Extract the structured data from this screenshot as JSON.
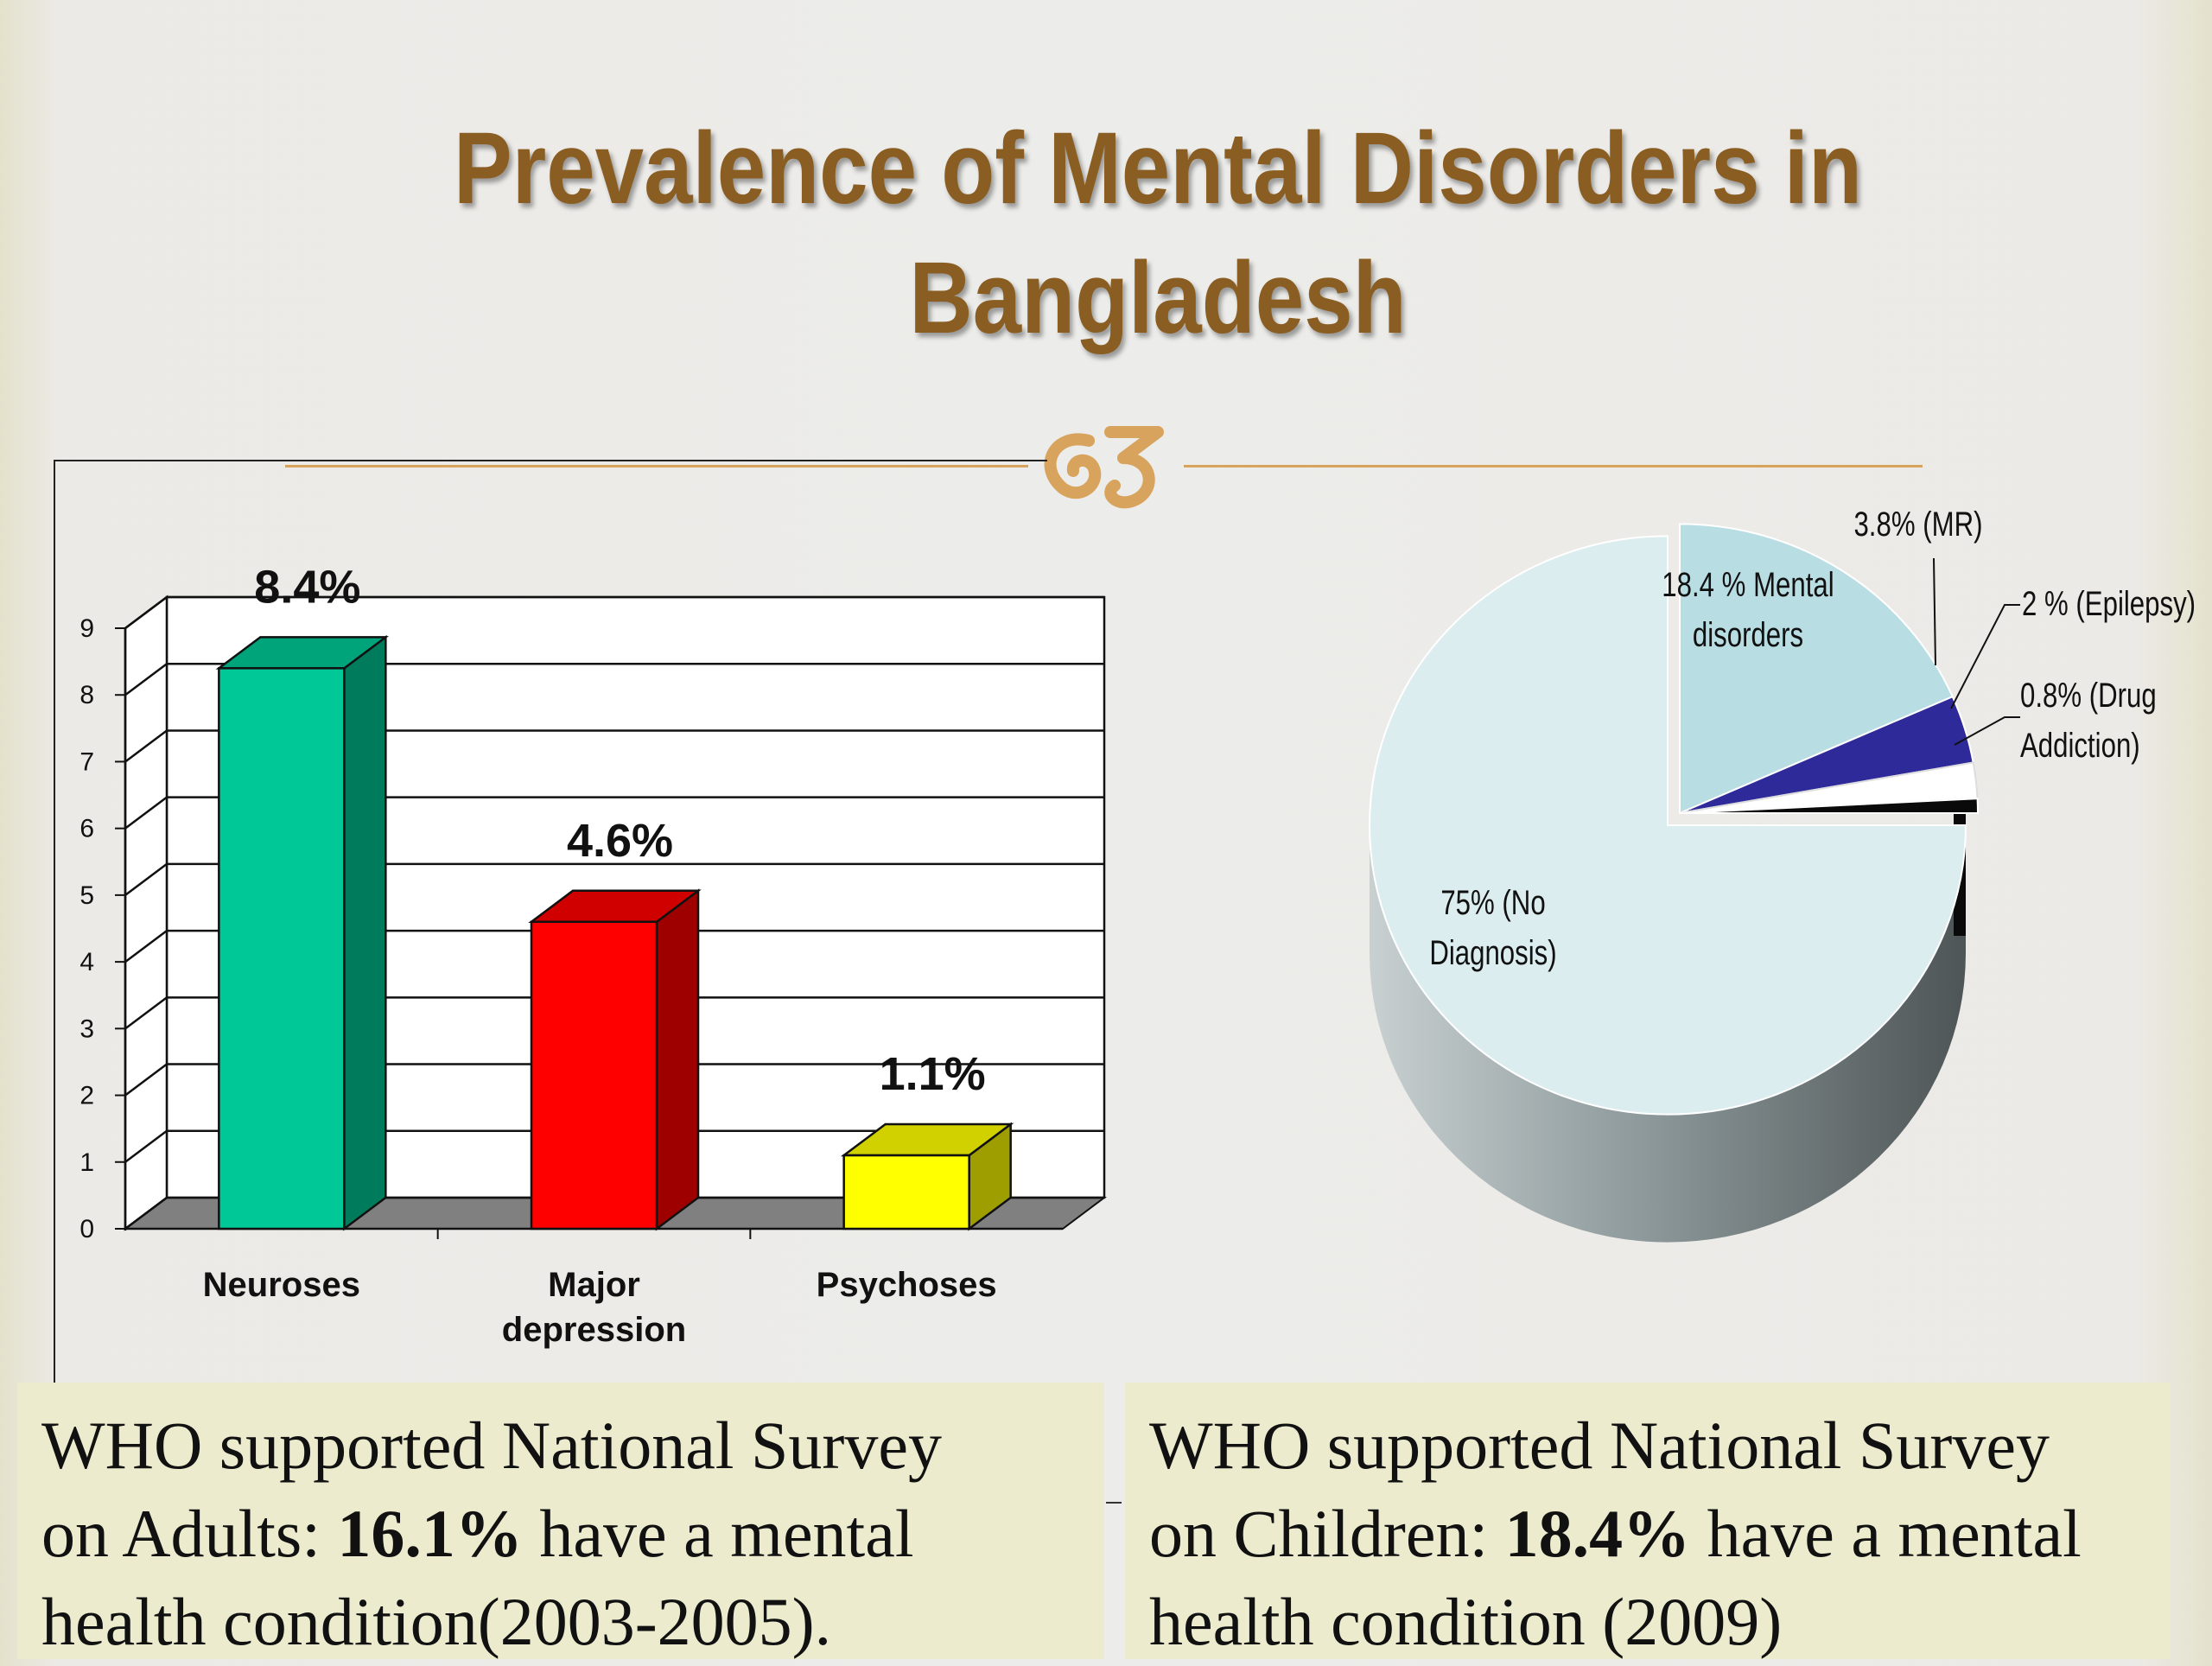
{
  "slide": {
    "title_line1": "Prevalence of Mental Disorders in",
    "title_line2": "Bangladesh"
  },
  "chart_data": [
    {
      "type": "bar",
      "categories": [
        "Neuroses",
        "Major depression",
        "Psychoses"
      ],
      "category_lines": [
        [
          "Neuroses"
        ],
        [
          "Major",
          "depression"
        ],
        [
          "Psychoses"
        ]
      ],
      "values": [
        8.4,
        4.6,
        1.1
      ],
      "data_labels": [
        "8.4%",
        "4.6%",
        "1.1%"
      ],
      "ylim": [
        0,
        9
      ],
      "yticks": [
        "0",
        "1",
        "2",
        "3",
        "4",
        "5",
        "6",
        "7",
        "8",
        "9"
      ],
      "grid": true,
      "style": "3d",
      "colors": [
        "#00c896",
        "#ff0000",
        "#ffff00"
      ]
    },
    {
      "type": "pie",
      "style": "3d",
      "slices": [
        {
          "label": "18.4 % Mental disorders",
          "label_lines": [
            "18.4 % Mental",
            "disorders"
          ],
          "value": 18.4,
          "color": "#b8dde3"
        },
        {
          "label": "3.8% (MR)",
          "label_lines": [
            "3.8% (MR)"
          ],
          "value": 3.8,
          "color": "#2e2a9a"
        },
        {
          "label": "2 % (Epilepsy)",
          "label_lines": [
            "2 % (Epilepsy)"
          ],
          "value": 2,
          "color": "#ffffff"
        },
        {
          "label": "0.8% (Drug Addiction)",
          "label_lines": [
            "0.8% (Drug",
            "Addiction)"
          ],
          "value": 0.8,
          "color": "#0a0a0a"
        },
        {
          "label": "75% (No Diagnosis)",
          "label_lines": [
            "75% (No",
            "Diagnosis)"
          ],
          "value": 75,
          "color": "#dcedef"
        }
      ]
    }
  ],
  "notes": {
    "adults": {
      "line1": "WHO supported National Survey",
      "line2_pre": "on Adults: ",
      "line2_bold": "16.1%",
      "line2_post": " have a mental",
      "line3": "health condition(2003-2005)."
    },
    "children": {
      "line1": "WHO supported National Survey",
      "line2_pre": "on Children: ",
      "line2_bold": "18.4%",
      "line2_post": " have a mental",
      "line3": "health condition (2009)"
    }
  }
}
